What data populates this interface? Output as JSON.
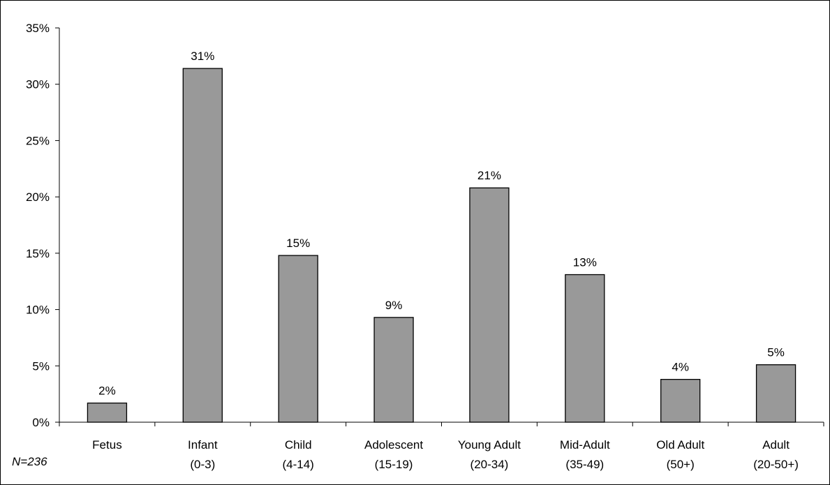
{
  "chart_data": {
    "type": "bar",
    "categories": [
      [
        "Fetus"
      ],
      [
        "Infant",
        "(0-3)"
      ],
      [
        "Child",
        "(4-14)"
      ],
      [
        "Adolescent",
        "(15-19)"
      ],
      [
        "Young Adult",
        "(20-34)"
      ],
      [
        "Mid-Adult",
        "(35-49)"
      ],
      [
        "Old Adult",
        "(50+)"
      ],
      [
        "Adult",
        "(20-50+)"
      ]
    ],
    "values": [
      1.7,
      31.4,
      14.8,
      9.3,
      20.8,
      13.1,
      3.8,
      5.1
    ],
    "data_labels": [
      "2%",
      "31%",
      "15%",
      "9%",
      "21%",
      "13%",
      "4%",
      "5%"
    ],
    "y_ticks": [
      0,
      5,
      10,
      15,
      20,
      25,
      30,
      35
    ],
    "y_tick_labels": [
      "0%",
      "5%",
      "10%",
      "15%",
      "20%",
      "25%",
      "30%",
      "35%"
    ],
    "ylim": [
      0,
      35
    ],
    "grid": false,
    "bar_color": "#999999",
    "bar_edge_color": "#000000"
  },
  "note": "N=236"
}
